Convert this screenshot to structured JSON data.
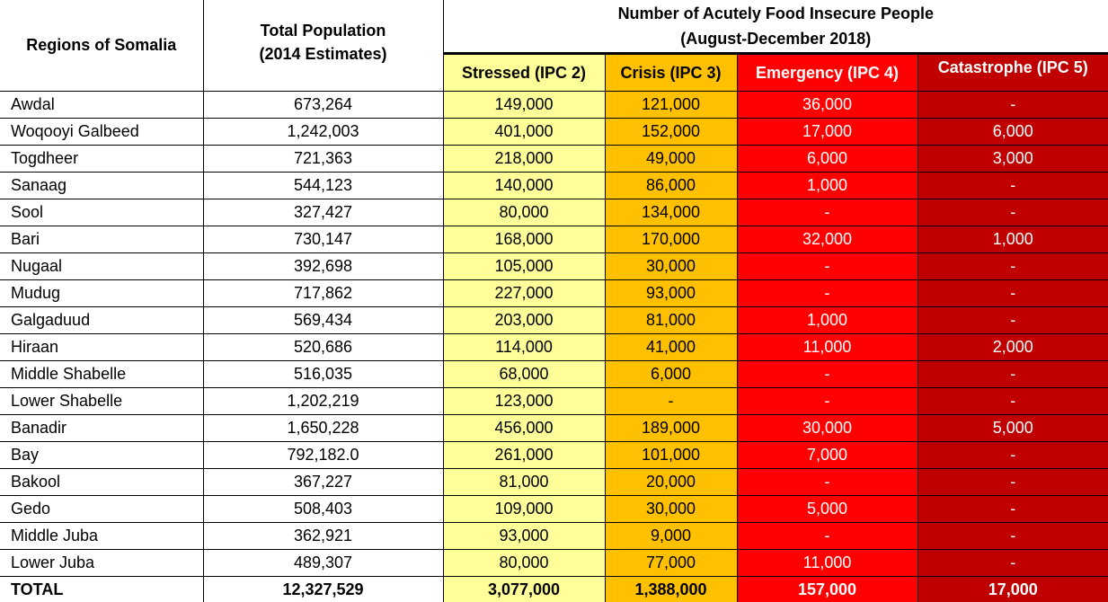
{
  "headers": {
    "region": "Regions of Somalia",
    "population_line1": "Total Population",
    "population_line2": "(2014 Estimates)",
    "group_line1": "Number of Acutely Food Insecure People",
    "group_line2": "(August-December 2018)",
    "ipc2": "Stressed (IPC 2)",
    "ipc3": "Crisis (IPC 3)",
    "ipc4": "Emergency (IPC 4)",
    "ipc5": "Catastrophe (IPC 5)"
  },
  "colors": {
    "ipc2": "#ffff99",
    "ipc3": "#ffc000",
    "ipc4": "#ff0000",
    "ipc5": "#c00000"
  },
  "rows": [
    {
      "region": "Awdal",
      "population": "673,264",
      "ipc2": "149,000",
      "ipc3": "121,000",
      "ipc4": "36,000",
      "ipc5": "-"
    },
    {
      "region": "Woqooyi Galbeed",
      "population": "1,242,003",
      "ipc2": "401,000",
      "ipc3": "152,000",
      "ipc4": "17,000",
      "ipc5": "6,000"
    },
    {
      "region": "Togdheer",
      "population": "721,363",
      "ipc2": "218,000",
      "ipc3": "49,000",
      "ipc4": "6,000",
      "ipc5": "3,000"
    },
    {
      "region": "Sanaag",
      "population": "544,123",
      "ipc2": "140,000",
      "ipc3": "86,000",
      "ipc4": "1,000",
      "ipc5": "-"
    },
    {
      "region": "Sool",
      "population": "327,427",
      "ipc2": "80,000",
      "ipc3": "134,000",
      "ipc4": "-",
      "ipc5": "-"
    },
    {
      "region": "Bari",
      "population": "730,147",
      "ipc2": "168,000",
      "ipc3": "170,000",
      "ipc4": "32,000",
      "ipc5": "1,000"
    },
    {
      "region": "Nugaal",
      "population": "392,698",
      "ipc2": "105,000",
      "ipc3": "30,000",
      "ipc4": "-",
      "ipc5": "-"
    },
    {
      "region": "Mudug",
      "population": "717,862",
      "ipc2": "227,000",
      "ipc3": "93,000",
      "ipc4": "-",
      "ipc5": "-"
    },
    {
      "region": "Galgaduud",
      "population": "569,434",
      "ipc2": "203,000",
      "ipc3": "81,000",
      "ipc4": "1,000",
      "ipc5": "-"
    },
    {
      "region": "Hiraan",
      "population": "520,686",
      "ipc2": "114,000",
      "ipc3": "41,000",
      "ipc4": "11,000",
      "ipc5": "2,000"
    },
    {
      "region": "Middle Shabelle",
      "population": "516,035",
      "ipc2": "68,000",
      "ipc3": "6,000",
      "ipc4": "-",
      "ipc5": "-"
    },
    {
      "region": "Lower Shabelle",
      "population": "1,202,219",
      "ipc2": "123,000",
      "ipc3": "-",
      "ipc4": "-",
      "ipc5": "-"
    },
    {
      "region": "Banadir",
      "population": "1,650,228",
      "ipc2": "456,000",
      "ipc3": "189,000",
      "ipc4": "30,000",
      "ipc5": "5,000"
    },
    {
      "region": "Bay",
      "population": "792,182.0",
      "ipc2": "261,000",
      "ipc3": "101,000",
      "ipc4": "7,000",
      "ipc5": "-"
    },
    {
      "region": "Bakool",
      "population": "367,227",
      "ipc2": "81,000",
      "ipc3": "20,000",
      "ipc4": "-",
      "ipc5": "-"
    },
    {
      "region": "Gedo",
      "population": "508,403",
      "ipc2": "109,000",
      "ipc3": "30,000",
      "ipc4": "5,000",
      "ipc5": "-"
    },
    {
      "region": "Middle Juba",
      "population": "362,921",
      "ipc2": "93,000",
      "ipc3": "9,000",
      "ipc4": "-",
      "ipc5": "-"
    },
    {
      "region": "Lower Juba",
      "population": "489,307",
      "ipc2": "80,000",
      "ipc3": "77,000",
      "ipc4": "11,000",
      "ipc5": "-"
    }
  ],
  "total": {
    "region": "TOTAL",
    "population": "12,327,529",
    "ipc2": "3,077,000",
    "ipc3": "1,388,000",
    "ipc4": "157,000",
    "ipc5": "17,000"
  }
}
